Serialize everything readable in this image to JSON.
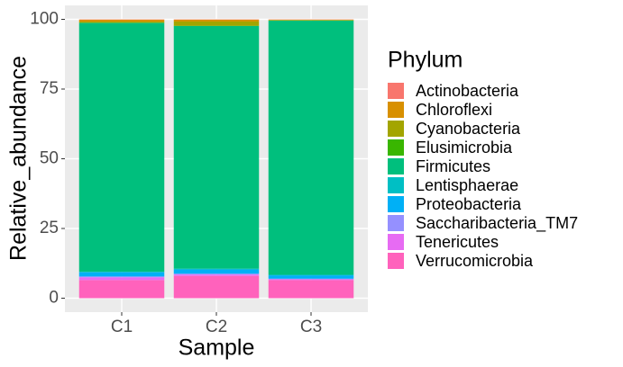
{
  "chart_data": {
    "type": "stacked_bar",
    "x_label": "Sample",
    "y_label": "Relative_abundance",
    "legend_title": "Phylum",
    "categories": [
      "C1",
      "C2",
      "C3"
    ],
    "ylim": [
      -5,
      105
    ],
    "yticks": [
      0,
      25,
      50,
      75,
      100
    ],
    "grid": true,
    "series": [
      {
        "name": "Actinobacteria",
        "color": "#F8766D",
        "values": [
          0.1,
          0.1,
          0.1
        ]
      },
      {
        "name": "Chloroflexi",
        "color": "#D89000",
        "values": [
          0.7,
          0.7,
          0.1
        ]
      },
      {
        "name": "Cyanobacteria",
        "color": "#A3A500",
        "values": [
          0.4,
          1.5,
          0.2
        ]
      },
      {
        "name": "Elusimicrobia",
        "color": "#39B600",
        "values": [
          0.1,
          0.1,
          0.1
        ]
      },
      {
        "name": "Firmicutes",
        "color": "#00BF7D",
        "values": [
          89.2,
          87.0,
          91.1
        ]
      },
      {
        "name": "Lentisphaerae",
        "color": "#00BFC4",
        "values": [
          0.2,
          0.3,
          0.2
        ]
      },
      {
        "name": "Proteobacteria",
        "color": "#00B0F6",
        "values": [
          1.5,
          1.5,
          1.2
        ]
      },
      {
        "name": "Saccharibacteria_TM7",
        "color": "#9590FF",
        "values": [
          0.3,
          0.3,
          0.2
        ]
      },
      {
        "name": "Tenericutes",
        "color": "#E76BF3",
        "values": [
          1.0,
          0.5,
          0.3
        ]
      },
      {
        "name": "Verrucomicrobia",
        "color": "#FF62BC",
        "values": [
          6.5,
          8.0,
          6.5
        ]
      }
    ]
  }
}
